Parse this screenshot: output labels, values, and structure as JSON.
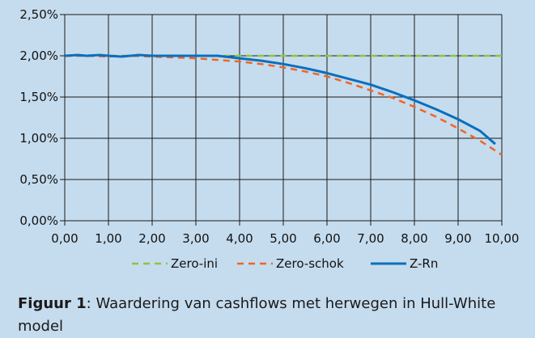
{
  "chart_data": {
    "type": "line",
    "title": "",
    "xlabel": "",
    "ylabel": "",
    "xlim": [
      0,
      10
    ],
    "ylim": [
      0,
      2.5
    ],
    "xticks": [
      "0,00",
      "1,00",
      "2,00",
      "3,00",
      "4,00",
      "5,00",
      "6,00",
      "7,00",
      "8,00",
      "9,00",
      "10,00"
    ],
    "yticks": [
      "0,00%",
      "0,50%",
      "1,00%",
      "1,50%",
      "2,00%",
      "2,50%"
    ],
    "grid": true,
    "legend_position": "bottom",
    "series": [
      {
        "name": "Zero-ini",
        "color": "#8cc63f",
        "style": "dashed",
        "x": [
          0,
          10
        ],
        "y": [
          2.0,
          2.0
        ]
      },
      {
        "name": "Zero-schok",
        "color": "#f26522",
        "style": "dashed",
        "x": [
          0,
          0.5,
          1,
          1.5,
          2,
          2.5,
          3,
          3.5,
          4,
          4.5,
          5,
          5.5,
          6,
          6.5,
          7,
          7.5,
          8,
          8.5,
          9,
          9.5,
          10
        ],
        "y": [
          2.0,
          2.0,
          1.99,
          2.0,
          1.99,
          1.98,
          1.97,
          1.95,
          1.93,
          1.9,
          1.86,
          1.81,
          1.75,
          1.67,
          1.58,
          1.49,
          1.38,
          1.26,
          1.12,
          0.97,
          0.8
        ]
      },
      {
        "name": "Z-Rn",
        "color": "#0a6fbd",
        "style": "solid",
        "x": [
          0,
          0.3,
          0.5,
          0.8,
          1.0,
          1.3,
          1.5,
          1.7,
          2.0,
          2.5,
          3.0,
          3.5,
          4.0,
          4.5,
          5.0,
          5.5,
          6.0,
          6.5,
          7.0,
          7.5,
          8.0,
          8.5,
          9.0,
          9.5,
          9.85
        ],
        "y": [
          2.0,
          2.01,
          2.0,
          2.01,
          2.0,
          1.99,
          2.0,
          2.01,
          2.0,
          2.0,
          2.0,
          2.0,
          1.97,
          1.94,
          1.9,
          1.85,
          1.79,
          1.72,
          1.65,
          1.56,
          1.46,
          1.35,
          1.23,
          1.09,
          0.93
        ]
      }
    ]
  },
  "caption": {
    "bold": "Figuur 1",
    "text": ": Waardering van cashflows met herwegen in Hull-White model"
  }
}
